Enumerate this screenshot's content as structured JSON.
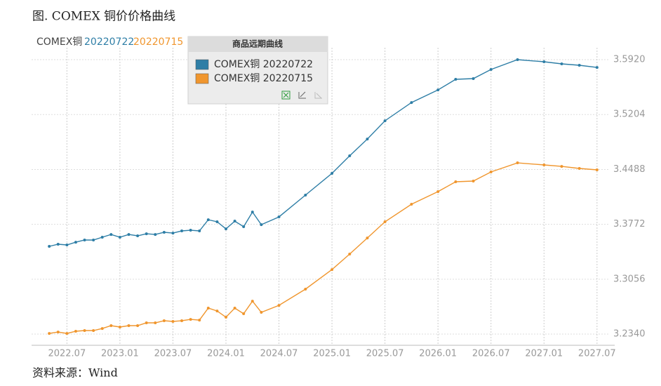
{
  "title": "图. COMEX 铜价价格曲线",
  "source": "资料来源：Wind",
  "chart_data": {
    "type": "line",
    "legend_prefix": "COMEX铜",
    "legend_dates": [
      "20220722",
      "20220715"
    ],
    "legend_title": "商品远期曲线",
    "x": [
      "2022.05",
      "2022.06",
      "2022.07",
      "2022.08",
      "2022.09",
      "2022.10",
      "2022.11",
      "2022.12",
      "2023.01",
      "2023.02",
      "2023.03",
      "2023.04",
      "2023.05",
      "2023.06",
      "2023.07",
      "2023.08",
      "2023.09",
      "2023.10",
      "2023.11",
      "2023.12",
      "2024.01",
      "2024.02",
      "2024.03",
      "2024.04",
      "2024.05",
      "2024.07",
      "2024.10",
      "2025.01",
      "2025.03",
      "2025.05",
      "2025.07",
      "2025.10",
      "2026.01",
      "2026.03",
      "2026.05",
      "2026.07",
      "2026.10",
      "2027.01",
      "2027.03",
      "2027.05",
      "2027.07"
    ],
    "series": [
      {
        "name": "COMEX铜 20220722",
        "color": "#2e7ea6",
        "values": [
          3.3485,
          3.3512,
          3.3503,
          3.3539,
          3.3567,
          3.3567,
          3.3604,
          3.364,
          3.3604,
          3.364,
          3.3622,
          3.3649,
          3.364,
          3.3668,
          3.3658,
          3.3686,
          3.3695,
          3.3686,
          3.3832,
          3.3805,
          3.3713,
          3.3814,
          3.3741,
          3.3933,
          3.3768,
          3.3869,
          3.4153,
          3.4437,
          3.4666,
          3.4885,
          3.5123,
          3.5361,
          3.5526,
          3.5664,
          3.5673,
          3.5792,
          3.592,
          3.5893,
          3.5865,
          3.5847,
          3.5819
        ]
      },
      {
        "name": "COMEX铜 20220715",
        "color": "#f0962e",
        "values": [
          3.2349,
          3.2367,
          3.2349,
          3.2377,
          3.2386,
          3.2386,
          3.2413,
          3.245,
          3.2432,
          3.245,
          3.245,
          3.2487,
          3.2487,
          3.2514,
          3.2505,
          3.2514,
          3.2532,
          3.2523,
          3.2679,
          3.2642,
          3.256,
          3.2679,
          3.2606,
          3.277,
          3.2624,
          3.2715,
          3.2926,
          3.3182,
          3.3384,
          3.3594,
          3.3805,
          3.4034,
          3.4199,
          3.4327,
          3.4336,
          3.4455,
          3.4574,
          3.4547,
          3.4528,
          3.4501,
          3.4483
        ]
      }
    ],
    "xlim": [
      "2022.03",
      "2027.09"
    ],
    "xticks": [
      "2022.07",
      "2023.01",
      "2023.07",
      "2024.01",
      "2024.07",
      "2025.01",
      "2025.07",
      "2026.01",
      "2026.07",
      "2027.01",
      "2027.07"
    ],
    "ylim": [
      3.2194,
      3.6076
    ],
    "yticks": [
      {
        "value": 3.234,
        "label": "3.2340"
      },
      3.3056,
      3.3772,
      3.4488,
      3.5204,
      {
        "value": 3.592,
        "label": "3.5920"
      }
    ],
    "grid": true
  }
}
